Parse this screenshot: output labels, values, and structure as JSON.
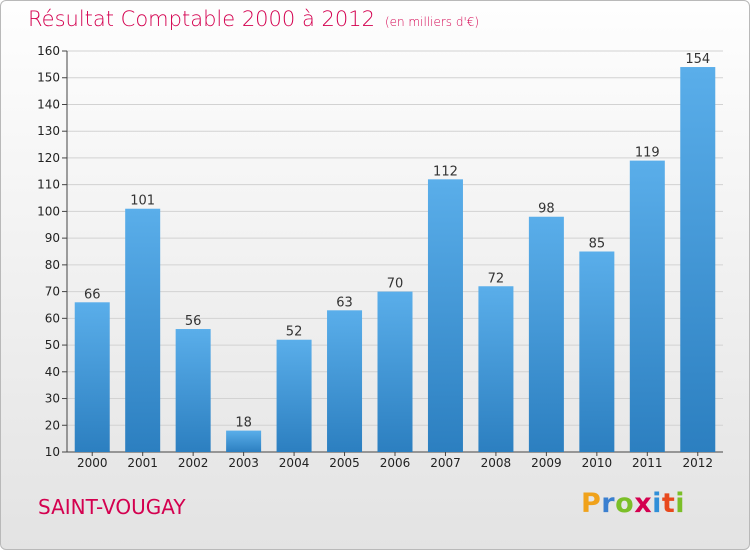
{
  "title": "Résultat Comptable 2000 à 2012",
  "subtitle": "(en milliers d'€)",
  "commune": "SAINT-VOUGAY",
  "brand": {
    "letters": [
      "P",
      "r",
      "o",
      "x",
      "i",
      "t",
      "i"
    ],
    "colors": [
      "#f0a21b",
      "#3a7fd0",
      "#7bbf28",
      "#d4004f",
      "#2f8fd8",
      "#e8491d",
      "#7bbf28"
    ]
  },
  "colors": {
    "bar_top": "#5aaeea",
    "bar_bottom": "#2c7fc0",
    "title": "#d4004f",
    "grid": "#d2d2d2"
  },
  "chart_data": {
    "type": "bar",
    "categories": [
      "2000",
      "2001",
      "2002",
      "2003",
      "2004",
      "2005",
      "2006",
      "2007",
      "2008",
      "2009",
      "2010",
      "2011",
      "2012"
    ],
    "values": [
      66,
      101,
      56,
      18,
      52,
      63,
      70,
      112,
      72,
      98,
      85,
      119,
      154
    ],
    "ylim": [
      10,
      160
    ],
    "yticks": [
      10,
      20,
      30,
      40,
      50,
      60,
      70,
      80,
      90,
      100,
      110,
      120,
      130,
      140,
      150,
      160
    ],
    "grid": true,
    "title": "Résultat Comptable 2000 à 2012",
    "xlabel": "",
    "ylabel": ""
  }
}
